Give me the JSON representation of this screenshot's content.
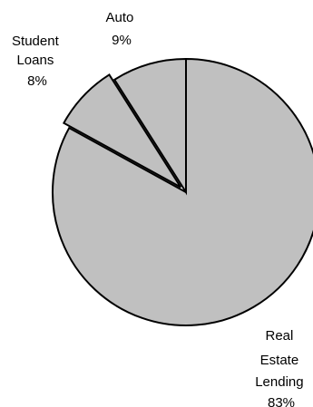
{
  "chart_data": {
    "type": "pie",
    "categories": [
      "Real Estate Lending",
      "Student Loans",
      "Auto"
    ],
    "values": [
      83,
      8,
      9
    ],
    "labels": [
      {
        "lines": [
          "Real",
          "Estate",
          "Lending"
        ],
        "pct": "83%"
      },
      {
        "lines": [
          "Student",
          "Loans"
        ],
        "pct": "8%"
      },
      {
        "lines": [
          "Auto"
        ],
        "pct": "9%"
      }
    ],
    "exploded": true,
    "legend": "none",
    "slice_color": "#c0c0c0",
    "edge_color": "#000000"
  }
}
